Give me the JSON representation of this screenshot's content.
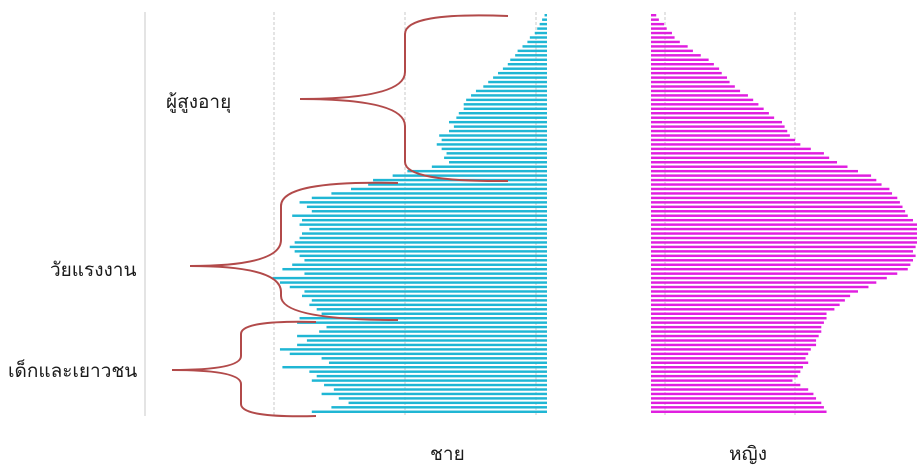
{
  "chart_data": {
    "type": "bar",
    "orientation": "horizontal",
    "layout": "population-pyramid",
    "title": "",
    "xlabel": "",
    "ylabel": "",
    "colors": {
      "male": "#1fb6d4",
      "female": "#e01ee0",
      "bracket": "#b24a4a",
      "grid": "#bdbdbd"
    },
    "series": [
      {
        "name": "ชาย",
        "values": [
          96,
          88,
          81,
          85,
          92,
          87,
          91,
          96,
          94,
          97,
          108,
          89,
          92,
          105,
          109,
          102,
          98,
          102,
          93,
          90,
          102,
          101,
          92,
          94,
          97,
          96,
          100,
          99,
          105,
          109,
          112,
          99,
          108,
          104,
          99,
          101,
          103,
          105,
          103,
          101,
          100,
          97,
          101,
          100,
          104,
          96,
          98,
          101,
          96,
          88,
          80,
          73,
          71,
          63,
          57,
          47,
          40,
          42,
          41,
          43,
          45,
          43,
          44,
          40,
          38,
          40,
          37,
          36,
          34,
          34,
          33,
          31,
          29,
          26,
          24,
          22,
          20,
          18,
          16,
          15,
          13,
          12,
          10,
          8,
          7,
          5,
          4,
          3,
          2,
          1
        ]
      },
      {
        "name": "หญิง",
        "values": [
          67,
          66,
          65,
          63,
          62,
          60,
          57,
          54,
          56,
          57,
          58,
          60,
          59,
          60,
          61,
          63,
          63,
          64,
          65,
          65,
          66,
          67,
          67,
          70,
          72,
          74,
          76,
          79,
          83,
          86,
          90,
          94,
          98,
          99,
          100,
          101,
          100,
          101,
          102,
          103,
          104,
          103,
          102,
          100,
          98,
          97,
          96,
          95,
          94,
          92,
          91,
          88,
          86,
          84,
          79,
          75,
          71,
          68,
          66,
          61,
          57,
          55,
          53,
          52,
          51,
          50,
          47,
          45,
          43,
          41,
          39,
          37,
          34,
          32,
          30,
          29,
          27,
          26,
          24,
          22,
          19,
          16,
          14,
          11,
          9,
          8,
          6,
          5,
          3,
          2
        ]
      }
    ],
    "age_groups": [
      {
        "label": "เด็กและเยาวชน"
      },
      {
        "label": "วัยแรงงาน"
      },
      {
        "label": "ผู้สูงอายุ"
      }
    ]
  }
}
